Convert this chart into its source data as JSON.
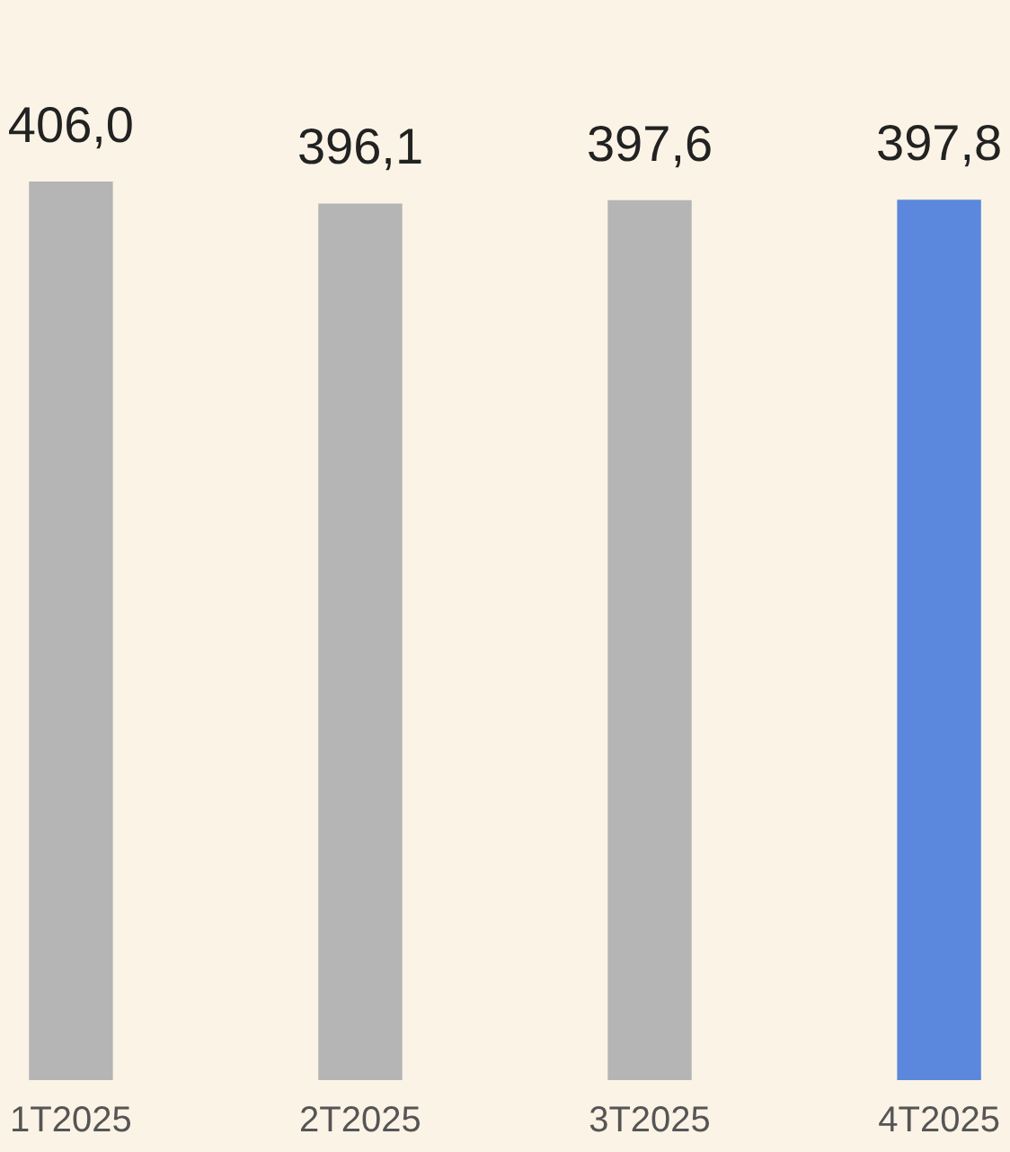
{
  "chart_data": {
    "type": "bar",
    "categories": [
      "1T2025",
      "2T2025",
      "3T2025",
      "4T2025"
    ],
    "values": [
      406.0,
      396.1,
      397.6,
      397.8
    ],
    "value_labels": [
      "406,0",
      "396,1",
      "397,6",
      "397,8"
    ],
    "colors": [
      "#b5b5b5",
      "#b5b5b5",
      "#b5b5b5",
      "#5b87dc"
    ],
    "grid": false
  }
}
